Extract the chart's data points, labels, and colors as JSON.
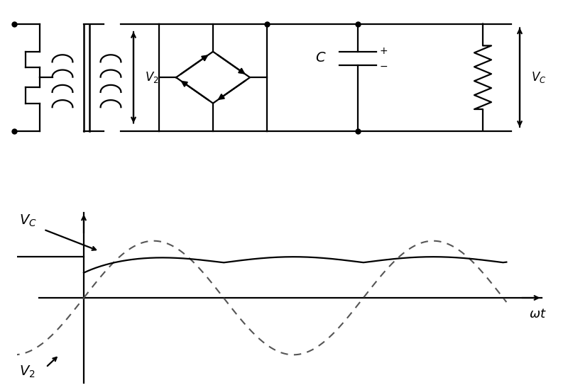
{
  "bg_color": "#ffffff",
  "line_color": "#000000",
  "dashed_color": "#555555",
  "lw": 1.6,
  "v2_amplitude": 1.0,
  "vc_dc_level": 0.72,
  "vc_ripple_amp": 0.1,
  "sine_freq": 1.0,
  "num_half_cycles": 9,
  "label_wt": "ωt",
  "label_V2": "V_2",
  "label_Vc_wave": "V_C",
  "label_Vc_circuit": "V_C",
  "label_V2_circuit": "V_2",
  "label_C": "C"
}
